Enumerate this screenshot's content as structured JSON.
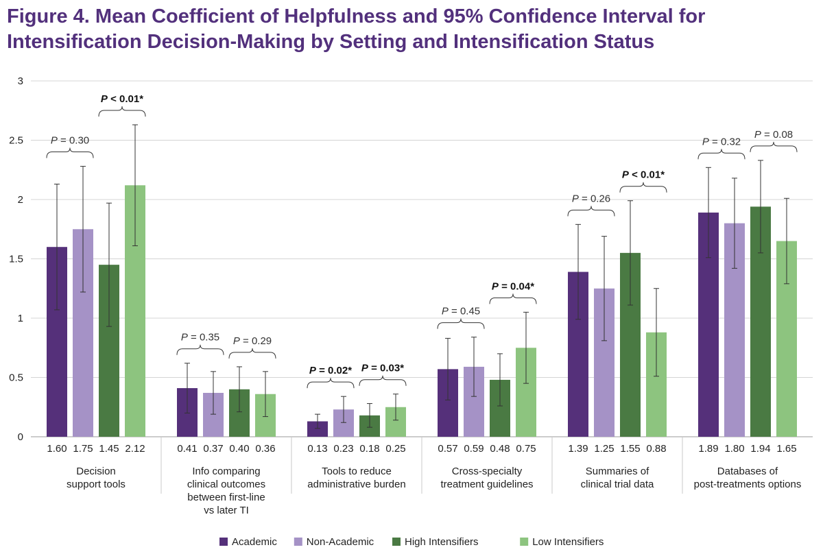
{
  "figure": {
    "title_line1": "Figure 4. Mean Coefficient of Helpfulness and 95% Confidence Interval for",
    "title_line2": "Intensification Decision-Making by Setting and Intensification Status"
  },
  "chart_data": {
    "type": "bar",
    "title": "Figure 4. Mean Coefficient of Helpfulness and 95% Confidence Interval for Intensification Decision-Making by Setting and Intensification Status",
    "xlabel": "",
    "ylabel": "",
    "ylim": [
      0,
      3
    ],
    "yticks": [
      "0",
      "0.5",
      "1",
      "1.5",
      "2",
      "2.5",
      "3"
    ],
    "grid": true,
    "legend_position": "bottom",
    "categories": [
      [
        "Decision",
        "support tools"
      ],
      [
        "Info comparing",
        "clinical outcomes",
        "between first-line",
        "vs later TI"
      ],
      [
        "Tools to reduce",
        "administrative burden"
      ],
      [
        "Cross-specialty",
        "treatment guidelines"
      ],
      [
        "Summaries of",
        "clinical trial data"
      ],
      [
        "Databases of",
        "post-treatments options"
      ]
    ],
    "series": [
      {
        "name": "Academic",
        "color": "#55307a",
        "values": [
          1.6,
          0.41,
          0.13,
          0.57,
          1.39,
          1.89
        ],
        "labels": [
          "1.60",
          "0.41",
          "0.13",
          "0.57",
          "1.39",
          "1.89"
        ],
        "ci_low": [
          1.07,
          0.2,
          0.07,
          0.31,
          0.99,
          1.51
        ],
        "ci_high": [
          2.13,
          0.62,
          0.19,
          0.83,
          1.79,
          2.27
        ]
      },
      {
        "name": "Non-Academic",
        "color": "#a592c6",
        "values": [
          1.75,
          0.37,
          0.23,
          0.59,
          1.25,
          1.8
        ],
        "labels": [
          "1.75",
          "0.37",
          "0.23",
          "0.59",
          "1.25",
          "1.80"
        ],
        "ci_low": [
          1.22,
          0.19,
          0.12,
          0.34,
          0.81,
          1.42
        ],
        "ci_high": [
          2.28,
          0.55,
          0.34,
          0.84,
          1.69,
          2.18
        ]
      },
      {
        "name": "High Intensifiers",
        "color": "#4a7a43",
        "values": [
          1.45,
          0.4,
          0.18,
          0.48,
          1.55,
          1.94
        ],
        "labels": [
          "1.45",
          "0.40",
          "0.18",
          "0.48",
          "1.55",
          "1.94"
        ],
        "ci_low": [
          0.93,
          0.21,
          0.08,
          0.26,
          1.11,
          1.55
        ],
        "ci_high": [
          1.97,
          0.59,
          0.28,
          0.7,
          1.99,
          2.33
        ]
      },
      {
        "name": "Low Intensifiers",
        "color": "#8dc47f",
        "values": [
          2.12,
          0.36,
          0.25,
          0.75,
          0.88,
          1.65
        ],
        "labels": [
          "2.12",
          "0.36",
          "0.25",
          "0.75",
          "0.88",
          "1.65"
        ],
        "ci_low": [
          1.61,
          0.17,
          0.14,
          0.45,
          0.51,
          1.29
        ],
        "ci_high": [
          2.63,
          0.55,
          0.36,
          1.05,
          1.25,
          2.01
        ]
      }
    ],
    "annotations": [
      {
        "group": 0,
        "pair": "setting",
        "italic_p": "P",
        "rest": " = 0.30",
        "significant": false
      },
      {
        "group": 0,
        "pair": "intensification",
        "italic_p": "P",
        "rest": " < 0.01*",
        "significant": true
      },
      {
        "group": 1,
        "pair": "setting",
        "italic_p": "P",
        "rest": " = 0.35",
        "significant": false
      },
      {
        "group": 1,
        "pair": "intensification",
        "italic_p": "P",
        "rest": " = 0.29",
        "significant": false
      },
      {
        "group": 2,
        "pair": "setting",
        "italic_p": "P",
        "rest": " = 0.02*",
        "significant": true
      },
      {
        "group": 2,
        "pair": "intensification",
        "italic_p": "P",
        "rest": " = 0.03*",
        "significant": true
      },
      {
        "group": 3,
        "pair": "setting",
        "italic_p": "P",
        "rest": " = 0.45",
        "significant": false
      },
      {
        "group": 3,
        "pair": "intensification",
        "italic_p": "P",
        "rest": " = 0.04*",
        "significant": true
      },
      {
        "group": 4,
        "pair": "setting",
        "italic_p": "P",
        "rest": " = 0.26",
        "significant": false
      },
      {
        "group": 4,
        "pair": "intensification",
        "italic_p": "P",
        "rest": " < 0.01*",
        "significant": true
      },
      {
        "group": 5,
        "pair": "setting",
        "italic_p": "P",
        "rest": " = 0.32",
        "significant": false
      },
      {
        "group": 5,
        "pair": "intensification",
        "italic_p": "P",
        "rest": " = 0.08",
        "significant": false
      }
    ]
  }
}
